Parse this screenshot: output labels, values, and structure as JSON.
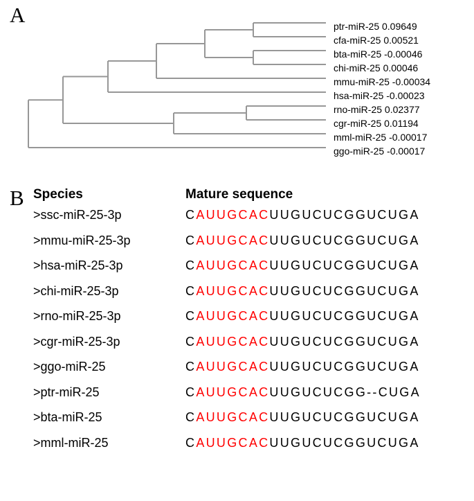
{
  "labels": {
    "A": "A",
    "B": "B"
  },
  "tree": {
    "stroke": "#979797",
    "stroke_width": 2,
    "leaves": [
      {
        "name": "ptr-miR-25",
        "value": "0.09649"
      },
      {
        "name": "cfa-miR-25",
        "value": "0.00521"
      },
      {
        "name": "bta-miR-25",
        "value": "-0.00046"
      },
      {
        "name": "chi-miR-25",
        "value": "0.00046"
      },
      {
        "name": "mmu-miR-25",
        "value": "-0.00034"
      },
      {
        "name": "hsa-miR-25",
        "value": "-0.00023"
      },
      {
        "name": "rno-miR-25",
        "value": "0.02377"
      },
      {
        "name": "cgr-miR-25",
        "value": "0.01194"
      },
      {
        "name": "mml-miR-25",
        "value": "-0.00017"
      },
      {
        "name": "ggo-miR-25",
        "value": "-0.00017"
      }
    ],
    "topology": {
      "left": [
        [
          "ptr",
          "cfa",
          "bta",
          "chi",
          "mmu",
          "hsa"
        ],
        [
          "rno",
          "cgr",
          "mml"
        ],
        [
          "ggo"
        ]
      ],
      "description": "see SVG"
    }
  },
  "alignment": {
    "header_species": "Species",
    "header_seq": "Mature sequence",
    "seed_color": "#ff0000",
    "rows": [
      {
        "sp": ">ssc-miR-25-3p",
        "pre": "C",
        "seed": "AUUGCAC",
        "post": "UUGUCUCGGUCUGA"
      },
      {
        "sp": ">mmu-miR-25-3p",
        "pre": "C",
        "seed": "AUUGCAC",
        "post": "UUGUCUCGGUCUGA"
      },
      {
        "sp": ">hsa-miR-25-3p",
        "pre": "C",
        "seed": "AUUGCAC",
        "post": "UUGUCUCGGUCUGA"
      },
      {
        "sp": ">chi-miR-25-3p",
        "pre": "C",
        "seed": "AUUGCAC",
        "post": "UUGUCUCGGUCUGA"
      },
      {
        "sp": ">rno-miR-25-3p",
        "pre": "C",
        "seed": "AUUGCAC",
        "post": "UUGUCUCGGUCUGA"
      },
      {
        "sp": ">cgr-miR-25-3p",
        "pre": "C",
        "seed": "AUUGCAC",
        "post": "UUGUCUCGGUCUGA"
      },
      {
        "sp": ">ggo-miR-25",
        "pre": "C",
        "seed": "AUUGCAC",
        "post": "UUGUCUCGGUCUGA"
      },
      {
        "sp": ">ptr-miR-25",
        "pre": "C",
        "seed": "AUUGCAC",
        "post": "UUGUCUCGG--CUGA"
      },
      {
        "sp": ">bta-miR-25",
        "pre": "C",
        "seed": "AUUGCAC",
        "post": "UUGUCUCGGUCUGA"
      },
      {
        "sp": ">mml-miR-25",
        "pre": "C",
        "seed": "AUUGCAC",
        "post": "UUGUCUCGGUCUGA"
      }
    ]
  }
}
